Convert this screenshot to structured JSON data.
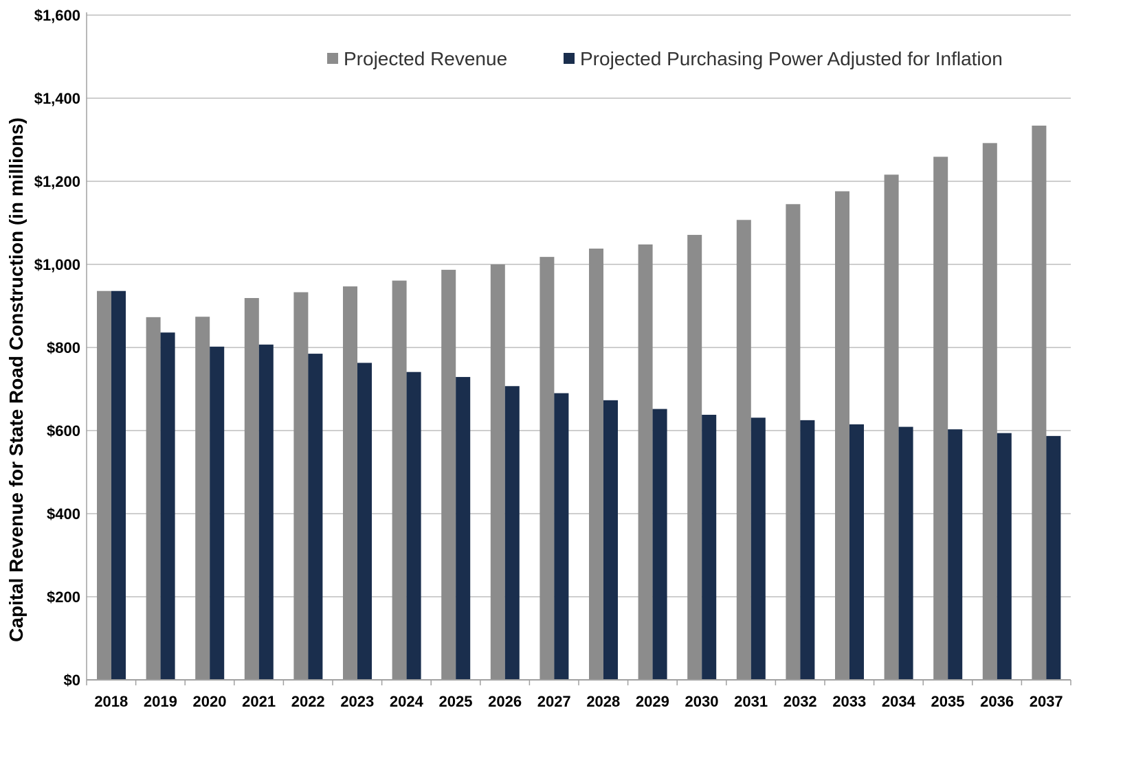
{
  "chart_data": {
    "type": "bar",
    "title": "",
    "xlabel": "",
    "ylabel": "Capital Revenue for State Road Construction (in millions)",
    "ylim": [
      0,
      1600
    ],
    "y_ticks": [
      0,
      200,
      400,
      600,
      800,
      1000,
      1200,
      1400,
      1600
    ],
    "y_tick_labels": [
      "$0",
      "$200",
      "$400",
      "$600",
      "$800",
      "$1,000",
      "$1,200",
      "$1,400",
      "$1,600"
    ],
    "grid": true,
    "legend_position": "top-right",
    "categories": [
      "2018",
      "2019",
      "2020",
      "2021",
      "2022",
      "2023",
      "2024",
      "2025",
      "2026",
      "2027",
      "2028",
      "2029",
      "2030",
      "2031",
      "2032",
      "2033",
      "2034",
      "2035",
      "2036",
      "2037"
    ],
    "series": [
      {
        "name": "Projected Revenue",
        "color": "#8c8c8c",
        "values": [
          936,
          873,
          874,
          919,
          933,
          947,
          961,
          987,
          1000,
          1018,
          1038,
          1048,
          1071,
          1107,
          1145,
          1176,
          1216,
          1259,
          1292,
          1334
        ]
      },
      {
        "name": "Projected Purchasing Power Adjusted for Inflation",
        "color": "#1a2e4d",
        "values": [
          936,
          836,
          802,
          807,
          785,
          763,
          741,
          729,
          707,
          690,
          673,
          652,
          638,
          631,
          625,
          615,
          609,
          603,
          594,
          587
        ]
      }
    ]
  }
}
